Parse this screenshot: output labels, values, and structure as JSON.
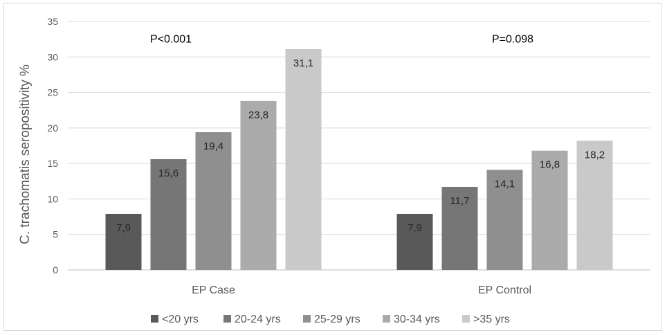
{
  "chart_data": {
    "type": "bar",
    "title": "",
    "ylabel": "C. trachomatis seropositivity %",
    "xlabel": "",
    "ylim": [
      0,
      35
    ],
    "yticks": [
      0,
      5,
      10,
      15,
      20,
      25,
      30,
      35
    ],
    "grid": true,
    "legend_position": "bottom",
    "categories": [
      "EP Case",
      "EP Control"
    ],
    "series": [
      {
        "name": "<20 yrs",
        "color": "#595959",
        "values": [
          7.9,
          7.9
        ],
        "labels": [
          "7,9",
          "7,9"
        ]
      },
      {
        "name": "20-24 yrs",
        "color": "#767676",
        "values": [
          15.6,
          11.7
        ],
        "labels": [
          "15,6",
          "11,7"
        ]
      },
      {
        "name": "25-29 yrs",
        "color": "#8f8f8f",
        "values": [
          19.4,
          14.1
        ],
        "labels": [
          "19,4",
          "14,1"
        ]
      },
      {
        "name": "30-34 yrs",
        "color": "#ababab",
        "values": [
          23.8,
          16.8
        ],
        "labels": [
          "23,8",
          "16,8"
        ]
      },
      {
        "name": ">35 yrs",
        "color": "#c9c9c9",
        "values": [
          31.1,
          18.2
        ],
        "labels": [
          "31,1",
          "18,2"
        ]
      }
    ],
    "annotations": [
      {
        "text": "P<0.001",
        "category": "EP Case",
        "y": 32.5
      },
      {
        "text": "P=0.098",
        "category": "EP Control",
        "y": 32.5
      }
    ]
  }
}
